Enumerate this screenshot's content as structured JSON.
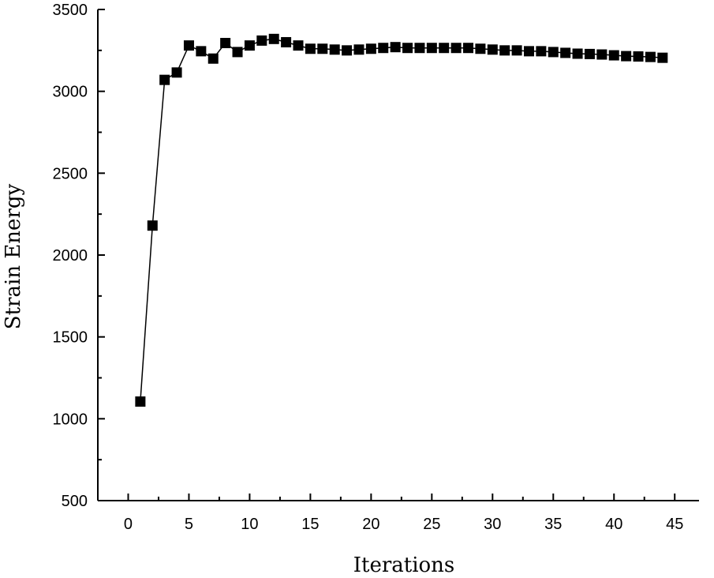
{
  "chart_data": {
    "type": "line",
    "title": "",
    "xlabel": "Iterations",
    "ylabel": "Strain Energy",
    "xlim": [
      -2.5,
      47
    ],
    "ylim": [
      500,
      3500
    ],
    "x_ticks": [
      0,
      5,
      10,
      15,
      20,
      25,
      30,
      35,
      40,
      45
    ],
    "y_ticks": [
      500,
      1000,
      1500,
      2000,
      2500,
      3000,
      3500
    ],
    "x_minor_step": 2.5,
    "y_minor_step": 250,
    "grid": false,
    "marker": "square",
    "series": [
      {
        "x": [
          1,
          2,
          3,
          4,
          5,
          6,
          7,
          8,
          9,
          10,
          11,
          12,
          13,
          14,
          15,
          16,
          17,
          18,
          19,
          20,
          21,
          22,
          23,
          24,
          25,
          26,
          27,
          28,
          29,
          30,
          31,
          32,
          33,
          34,
          35,
          36,
          37,
          38,
          39,
          40,
          41,
          42,
          43,
          44
        ],
        "values": [
          1105,
          2180,
          3070,
          3115,
          3280,
          3245,
          3200,
          3295,
          3240,
          3280,
          3310,
          3320,
          3300,
          3280,
          3260,
          3260,
          3255,
          3250,
          3255,
          3260,
          3265,
          3270,
          3265,
          3265,
          3265,
          3265,
          3265,
          3265,
          3260,
          3255,
          3250,
          3250,
          3245,
          3245,
          3240,
          3235,
          3230,
          3228,
          3225,
          3220,
          3215,
          3213,
          3210,
          3205
        ]
      }
    ],
    "colors": {
      "line": "#000000",
      "marker": "#000000",
      "axis": "#000000"
    }
  }
}
